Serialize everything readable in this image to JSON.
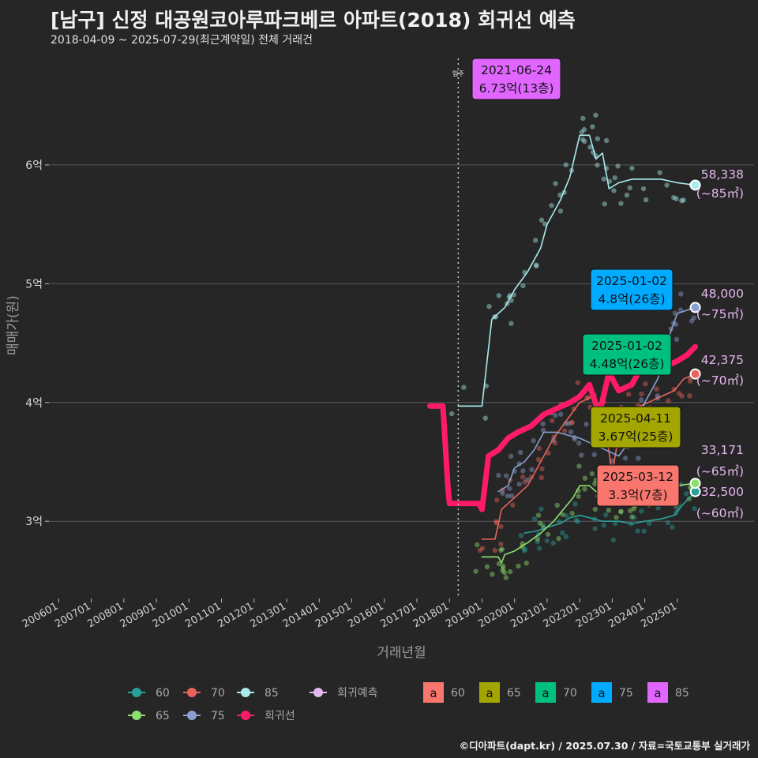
{
  "header": {
    "title": "[남구] 신정 대공원코아루파크베르 아파트(2018) 회귀선 예측",
    "subtitle": "2018-04-09 ~ 2025-07-29(최근계약일) 전체 거래건"
  },
  "caption": "©디아파트(dapt.kr) / 2025.07.30 / 자료=국토교통부 실거래가",
  "colors": {
    "background": "#262626",
    "grid": "#5a5a5a",
    "s60": "#2aa198",
    "s65": "#8ee06e",
    "s70": "#e8645a",
    "s75": "#8a9fcf",
    "s85": "#a8ecec",
    "regression": "#ff1a6a",
    "endLabel": "#e6b8f0"
  },
  "chart_data": {
    "type": "line",
    "xlabel": "거래년월",
    "ylabel": "매매가(원)",
    "x_ticks": [
      "200601",
      "200701",
      "200801",
      "200901",
      "201001",
      "201101",
      "201201",
      "201301",
      "201401",
      "201501",
      "201601",
      "201701",
      "201801",
      "201901",
      "202001",
      "202101",
      "202201",
      "202301",
      "202401",
      "202501"
    ],
    "y_ticks": [
      {
        "value": 3,
        "label": "3억"
      },
      {
        "value": 4,
        "label": "4억"
      },
      {
        "value": 5,
        "label": "5억"
      },
      {
        "value": 6,
        "label": "6억"
      }
    ],
    "xlim": [
      2005.7,
      2025.9
    ],
    "ylim": [
      2.35,
      6.95
    ],
    "vline": {
      "x": 2018.27,
      "label": "입주"
    },
    "series": [
      {
        "name": "60",
        "color": "#2aa198",
        "values": [
          [
            2020.3,
            2.9
          ],
          [
            2020.7,
            2.92
          ],
          [
            2021.0,
            2.95
          ],
          [
            2021.4,
            2.98
          ],
          [
            2021.7,
            3.03
          ],
          [
            2022.0,
            3.05
          ],
          [
            2022.3,
            3.03
          ],
          [
            2022.7,
            3.0
          ],
          [
            2023.2,
            3.0
          ],
          [
            2023.6,
            2.98
          ],
          [
            2024.0,
            3.0
          ],
          [
            2024.5,
            3.02
          ],
          [
            2024.9,
            3.05
          ],
          [
            2025.2,
            3.15
          ],
          [
            2025.55,
            3.25
          ]
        ]
      },
      {
        "name": "65",
        "color": "#8ee06e",
        "values": [
          [
            2019.0,
            2.7
          ],
          [
            2019.5,
            2.7
          ],
          [
            2019.6,
            2.65
          ],
          [
            2019.7,
            2.72
          ],
          [
            2020.0,
            2.75
          ],
          [
            2020.4,
            2.82
          ],
          [
            2020.8,
            2.9
          ],
          [
            2021.2,
            3.0
          ],
          [
            2021.5,
            3.1
          ],
          [
            2021.8,
            3.2
          ],
          [
            2022.0,
            3.3
          ],
          [
            2022.3,
            3.3
          ],
          [
            2022.5,
            3.25
          ],
          [
            2022.8,
            3.25
          ],
          [
            2023.2,
            3.2
          ],
          [
            2023.6,
            3.2
          ],
          [
            2024.0,
            3.25
          ],
          [
            2024.5,
            3.3
          ],
          [
            2025.0,
            3.3
          ],
          [
            2025.55,
            3.32
          ]
        ]
      },
      {
        "name": "70",
        "color": "#e8645a",
        "values": [
          [
            2019.0,
            2.85
          ],
          [
            2019.4,
            2.85
          ],
          [
            2019.6,
            3.1
          ],
          [
            2020.0,
            3.2
          ],
          [
            2020.4,
            3.3
          ],
          [
            2020.8,
            3.5
          ],
          [
            2021.2,
            3.7
          ],
          [
            2021.6,
            3.85
          ],
          [
            2022.0,
            4.0
          ],
          [
            2022.4,
            4.05
          ],
          [
            2022.7,
            3.95
          ],
          [
            2023.0,
            3.4
          ],
          [
            2023.3,
            3.9
          ],
          [
            2023.7,
            3.95
          ],
          [
            2024.1,
            4.0
          ],
          [
            2024.5,
            4.05
          ],
          [
            2024.9,
            4.1
          ],
          [
            2025.2,
            4.2
          ],
          [
            2025.55,
            4.24
          ]
        ]
      },
      {
        "name": "75",
        "color": "#8a9fcf",
        "values": [
          [
            2019.5,
            3.25
          ],
          [
            2019.8,
            3.3
          ],
          [
            2020.0,
            3.45
          ],
          [
            2020.3,
            3.5
          ],
          [
            2020.6,
            3.6
          ],
          [
            2020.9,
            3.75
          ],
          [
            2021.3,
            3.75
          ],
          [
            2021.7,
            3.72
          ],
          [
            2022.0,
            3.7
          ],
          [
            2022.4,
            3.65
          ],
          [
            2022.8,
            3.6
          ],
          [
            2023.2,
            3.55
          ],
          [
            2023.6,
            3.7
          ],
          [
            2024.0,
            4.0
          ],
          [
            2024.4,
            4.2
          ],
          [
            2024.8,
            4.6
          ],
          [
            2025.0,
            4.75
          ],
          [
            2025.55,
            4.8
          ]
        ]
      },
      {
        "name": "85",
        "color": "#a8ecec",
        "values": [
          [
            2018.27,
            3.97
          ],
          [
            2019.0,
            3.97
          ],
          [
            2019.3,
            4.7
          ],
          [
            2019.7,
            4.8
          ],
          [
            2020.0,
            4.95
          ],
          [
            2020.4,
            5.1
          ],
          [
            2020.8,
            5.3
          ],
          [
            2021.0,
            5.5
          ],
          [
            2021.4,
            5.7
          ],
          [
            2021.7,
            5.9
          ],
          [
            2022.0,
            6.25
          ],
          [
            2022.3,
            6.25
          ],
          [
            2022.5,
            6.05
          ],
          [
            2022.7,
            6.1
          ],
          [
            2022.9,
            5.8
          ],
          [
            2023.2,
            5.85
          ],
          [
            2023.6,
            5.88
          ],
          [
            2024.0,
            5.88
          ],
          [
            2024.5,
            5.88
          ],
          [
            2025.0,
            5.85
          ],
          [
            2025.55,
            5.83
          ]
        ]
      },
      {
        "name": "회귀선",
        "color": "#ff1a6a",
        "values": [
          [
            2017.4,
            3.97
          ],
          [
            2017.8,
            3.97
          ],
          [
            2017.95,
            3.3
          ],
          [
            2018.0,
            3.15
          ],
          [
            2018.5,
            3.15
          ],
          [
            2018.9,
            3.15
          ],
          [
            2019.0,
            3.1
          ],
          [
            2019.2,
            3.55
          ],
          [
            2019.5,
            3.6
          ],
          [
            2019.8,
            3.7
          ],
          [
            2020.1,
            3.75
          ],
          [
            2020.5,
            3.8
          ],
          [
            2020.9,
            3.9
          ],
          [
            2021.3,
            3.95
          ],
          [
            2021.7,
            4.0
          ],
          [
            2022.0,
            4.05
          ],
          [
            2022.3,
            4.15
          ],
          [
            2022.6,
            3.9
          ],
          [
            2022.9,
            4.25
          ],
          [
            2023.2,
            4.1
          ],
          [
            2023.6,
            4.15
          ],
          [
            2023.9,
            4.3
          ],
          [
            2024.2,
            4.25
          ],
          [
            2024.6,
            4.3
          ],
          [
            2025.0,
            4.35
          ],
          [
            2025.3,
            4.4
          ],
          [
            2025.55,
            4.47
          ]
        ]
      }
    ],
    "end_labels": [
      {
        "series": "85",
        "y": 5.83,
        "value": "58,338",
        "area": "(~85㎡)"
      },
      {
        "series": "75",
        "y": 4.8,
        "value": "48,000",
        "area": "(~75㎡)"
      },
      {
        "series": "70",
        "y": 4.24,
        "value": "42,375",
        "area": "(~70㎡)"
      },
      {
        "series": "65",
        "y": 3.32,
        "value": "33,171",
        "area": "(~65㎡)"
      },
      {
        "series": "60",
        "y": 3.25,
        "value": "32,500",
        "area": "(~60㎡)"
      }
    ],
    "callouts": [
      {
        "series": "85",
        "date": "2021-06-24",
        "price": "6.73억(13층)",
        "color": "#e066ff"
      },
      {
        "series": "75",
        "date": "2025-01-02",
        "price": "4.8억(26층)",
        "color": "#00aaff"
      },
      {
        "series": "70",
        "date": "2025-01-02",
        "price": "4.48억(26층)",
        "color": "#00c080"
      },
      {
        "series": "65",
        "date": "2025-04-11",
        "price": "3.67억(25층)",
        "color": "#a3a500"
      },
      {
        "series": "60",
        "date": "2025-03-12",
        "price": "3.3억(7층)",
        "color": "#f8766d"
      }
    ],
    "legend": {
      "position": "bottom",
      "line_items": [
        "60",
        "70",
        "85",
        "회귀예측",
        "65",
        "75",
        "회귀선"
      ],
      "label_items": [
        {
          "key": "a",
          "name": "60",
          "color": "#f8766d"
        },
        {
          "key": "a",
          "name": "65",
          "color": "#a3a500"
        },
        {
          "key": "a",
          "name": "70",
          "color": "#00c080"
        },
        {
          "key": "a",
          "name": "75",
          "color": "#00aaff"
        },
        {
          "key": "a",
          "name": "85",
          "color": "#e066ff"
        }
      ]
    },
    "grid": true
  }
}
